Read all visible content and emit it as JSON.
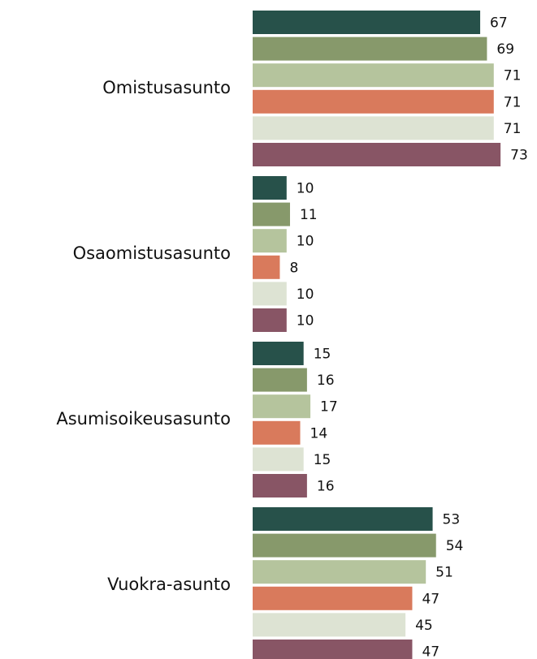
{
  "chart_data": {
    "type": "bar",
    "orientation": "horizontal",
    "categories": [
      "Omistusasunto",
      "Osaomistusasunto",
      "Asumisoikeusasunto",
      "Vuokra-asunto"
    ],
    "series": [
      {
        "color": "#27514a",
        "values": [
          67,
          10,
          15,
          53
        ]
      },
      {
        "color": "#87996b",
        "values": [
          69,
          11,
          16,
          54
        ]
      },
      {
        "color": "#b5c49d",
        "values": [
          71,
          10,
          17,
          51
        ]
      },
      {
        "color": "#d97a5c",
        "values": [
          71,
          8,
          14,
          47
        ]
      },
      {
        "color": "#dde3d3",
        "values": [
          71,
          10,
          15,
          45
        ]
      },
      {
        "color": "#885565",
        "values": [
          73,
          10,
          16,
          47
        ]
      }
    ]
  }
}
